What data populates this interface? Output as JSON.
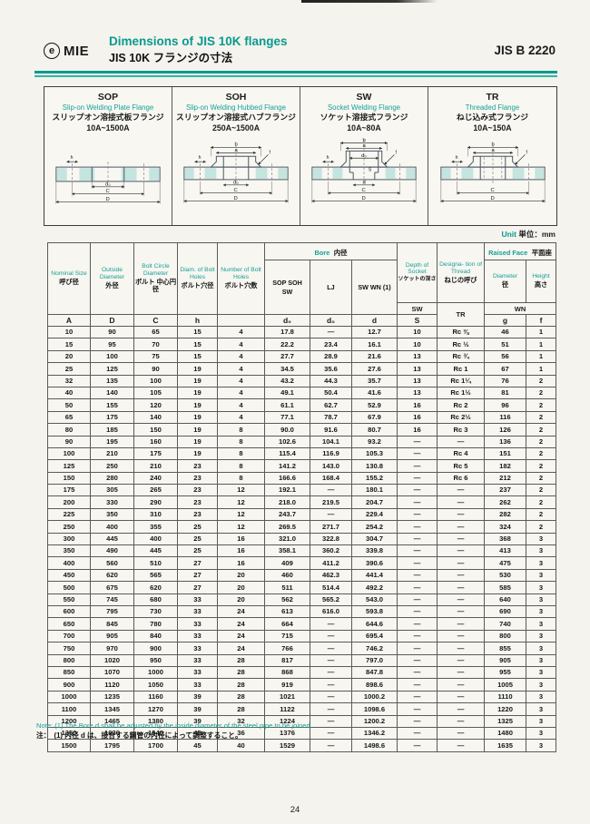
{
  "header": {
    "logo_icon": "e",
    "logo_text": "MIE",
    "title_en": "Dimensions of JIS 10K flanges",
    "title_ja": "JIS 10K フランジの寸法",
    "standard_code": "JIS B 2220"
  },
  "unit": {
    "en": "Unit",
    "ja": "単位：mm"
  },
  "flange_types": [
    {
      "code": "SOP",
      "name_en": "Slip-on Welding Plate Flange",
      "name_ja": "スリップオン溶接式板フランジ",
      "range": "10A~1500A"
    },
    {
      "code": "SOH",
      "name_en": "Slip-on Welding Hubbed Flange",
      "name_ja": "スリップオン溶接式ハブフランジ",
      "range": "250A~1500A"
    },
    {
      "code": "SW",
      "name_en": "Socket Welding Flange",
      "name_ja": "ソケット溶接式フランジ",
      "range": "10A~80A"
    },
    {
      "code": "TR",
      "name_en": "Threaded Flange",
      "name_ja": "ねじ込み式フランジ",
      "range": "10A~150A"
    }
  ],
  "diagram_labels": {
    "b": "b",
    "a": "a",
    "h": "h",
    "f": "f",
    "d0": "d₀",
    "d": "d",
    "S": "S",
    "C": "C",
    "D": "D"
  },
  "table": {
    "groups": {
      "bore": {
        "en": "Bore",
        "ja": "内径"
      },
      "raised_face": {
        "en": "Raised Face",
        "ja": "平面座"
      }
    },
    "columns": {
      "nominal": {
        "en": "Nominal Size",
        "ja": "呼び径",
        "letter": "A"
      },
      "outside": {
        "en": "Outside Diameter",
        "ja": "外径",
        "letter": "D"
      },
      "bolt_circle": {
        "en": "Bolt Circle Diameter",
        "ja": "ボルト 中心円径",
        "letter": "C"
      },
      "bolt_hole_dia": {
        "en": "Diam. of Bolt Holes",
        "ja": "ボルト穴径",
        "letter": "h"
      },
      "bolt_hole_num": {
        "en": "Number of Bolt Holes",
        "ja": "ボルト穴数",
        "letter": ""
      },
      "bore_sop": {
        "label": "SOP SOH SW",
        "letter": "d₀"
      },
      "bore_lj": {
        "label": "LJ",
        "letter": "d₀"
      },
      "bore_sw": {
        "label": "SW WN (1)",
        "letter": "d"
      },
      "socket_depth": {
        "en": "Depth of Socket",
        "ja": "ソケットの深さ",
        "sub": "SW",
        "letter": "S"
      },
      "thread": {
        "en": "Designa- tion of Thread",
        "ja": "ねじの呼び",
        "sub": "TR"
      },
      "rf_dia": {
        "en": "Diameter",
        "ja": "径",
        "letter": "g"
      },
      "rf_height": {
        "en": "Height",
        "ja": "高さ",
        "letter": "f"
      },
      "rf_sub": "WN"
    },
    "rows": [
      [
        "10",
        "90",
        "65",
        "15",
        "4",
        "17.8",
        "—",
        "12.7",
        "10",
        "Rc ⅜",
        "46",
        "1"
      ],
      [
        "15",
        "95",
        "70",
        "15",
        "4",
        "22.2",
        "23.4",
        "16.1",
        "10",
        "Rc ½",
        "51",
        "1"
      ],
      [
        "20",
        "100",
        "75",
        "15",
        "4",
        "27.7",
        "28.9",
        "21.6",
        "13",
        "Rc ¾",
        "56",
        "1"
      ],
      [
        "25",
        "125",
        "90",
        "19",
        "4",
        "34.5",
        "35.6",
        "27.6",
        "13",
        "Rc 1",
        "67",
        "1"
      ],
      [
        "32",
        "135",
        "100",
        "19",
        "4",
        "43.2",
        "44.3",
        "35.7",
        "13",
        "Rc 1¼",
        "76",
        "2"
      ],
      [
        "40",
        "140",
        "105",
        "19",
        "4",
        "49.1",
        "50.4",
        "41.6",
        "13",
        "Rc 1½",
        "81",
        "2"
      ],
      [
        "50",
        "155",
        "120",
        "19",
        "4",
        "61.1",
        "62.7",
        "52.9",
        "16",
        "Rc 2",
        "96",
        "2"
      ],
      [
        "65",
        "175",
        "140",
        "19",
        "4",
        "77.1",
        "78.7",
        "67.9",
        "16",
        "Rc 2½",
        "116",
        "2"
      ],
      [
        "80",
        "185",
        "150",
        "19",
        "8",
        "90.0",
        "91.6",
        "80.7",
        "16",
        "Rc 3",
        "126",
        "2"
      ],
      [
        "90",
        "195",
        "160",
        "19",
        "8",
        "102.6",
        "104.1",
        "93.2",
        "—",
        "—",
        "136",
        "2"
      ],
      [
        "100",
        "210",
        "175",
        "19",
        "8",
        "115.4",
        "116.9",
        "105.3",
        "—",
        "Rc 4",
        "151",
        "2"
      ],
      [
        "125",
        "250",
        "210",
        "23",
        "8",
        "141.2",
        "143.0",
        "130.8",
        "—",
        "Rc 5",
        "182",
        "2"
      ],
      [
        "150",
        "280",
        "240",
        "23",
        "8",
        "166.6",
        "168.4",
        "155.2",
        "—",
        "Rc 6",
        "212",
        "2"
      ],
      [
        "175",
        "305",
        "265",
        "23",
        "12",
        "192.1",
        "—",
        "180.1",
        "—",
        "—",
        "237",
        "2"
      ],
      [
        "200",
        "330",
        "290",
        "23",
        "12",
        "218.0",
        "219.5",
        "204.7",
        "—",
        "—",
        "262",
        "2"
      ],
      [
        "225",
        "350",
        "310",
        "23",
        "12",
        "243.7",
        "—",
        "229.4",
        "—",
        "—",
        "282",
        "2"
      ],
      [
        "250",
        "400",
        "355",
        "25",
        "12",
        "269.5",
        "271.7",
        "254.2",
        "—",
        "—",
        "324",
        "2"
      ],
      [
        "300",
        "445",
        "400",
        "25",
        "16",
        "321.0",
        "322.8",
        "304.7",
        "—",
        "—",
        "368",
        "3"
      ],
      [
        "350",
        "490",
        "445",
        "25",
        "16",
        "358.1",
        "360.2",
        "339.8",
        "—",
        "—",
        "413",
        "3"
      ],
      [
        "400",
        "560",
        "510",
        "27",
        "16",
        "409",
        "411.2",
        "390.6",
        "—",
        "—",
        "475",
        "3"
      ],
      [
        "450",
        "620",
        "565",
        "27",
        "20",
        "460",
        "462.3",
        "441.4",
        "—",
        "—",
        "530",
        "3"
      ],
      [
        "500",
        "675",
        "620",
        "27",
        "20",
        "511",
        "514.4",
        "492.2",
        "—",
        "—",
        "585",
        "3"
      ],
      [
        "550",
        "745",
        "680",
        "33",
        "20",
        "562",
        "565.2",
        "543.0",
        "—",
        "—",
        "640",
        "3"
      ],
      [
        "600",
        "795",
        "730",
        "33",
        "24",
        "613",
        "616.0",
        "593.8",
        "—",
        "—",
        "690",
        "3"
      ],
      [
        "650",
        "845",
        "780",
        "33",
        "24",
        "664",
        "—",
        "644.6",
        "—",
        "—",
        "740",
        "3"
      ],
      [
        "700",
        "905",
        "840",
        "33",
        "24",
        "715",
        "—",
        "695.4",
        "—",
        "—",
        "800",
        "3"
      ],
      [
        "750",
        "970",
        "900",
        "33",
        "24",
        "766",
        "—",
        "746.2",
        "—",
        "—",
        "855",
        "3"
      ],
      [
        "800",
        "1020",
        "950",
        "33",
        "28",
        "817",
        "—",
        "797.0",
        "—",
        "—",
        "905",
        "3"
      ],
      [
        "850",
        "1070",
        "1000",
        "33",
        "28",
        "868",
        "—",
        "847.8",
        "—",
        "—",
        "955",
        "3"
      ],
      [
        "900",
        "1120",
        "1050",
        "33",
        "28",
        "919",
        "—",
        "898.6",
        "—",
        "—",
        "1005",
        "3"
      ],
      [
        "1000",
        "1235",
        "1160",
        "39",
        "28",
        "1021",
        "—",
        "1000.2",
        "—",
        "—",
        "1110",
        "3"
      ],
      [
        "1100",
        "1345",
        "1270",
        "39",
        "28",
        "1122",
        "—",
        "1098.6",
        "—",
        "—",
        "1220",
        "3"
      ],
      [
        "1200",
        "1465",
        "1380",
        "39",
        "32",
        "1224",
        "—",
        "1200.2",
        "—",
        "—",
        "1325",
        "3"
      ],
      [
        "1350",
        "1630",
        "1540",
        "45",
        "36",
        "1376",
        "—",
        "1346.2",
        "—",
        "—",
        "1480",
        "3"
      ],
      [
        "1500",
        "1795",
        "1700",
        "45",
        "40",
        "1529",
        "—",
        "1498.6",
        "—",
        "—",
        "1635",
        "3"
      ]
    ],
    "group_starts": [
      3,
      6,
      9,
      12,
      15,
      18,
      21,
      24,
      27,
      30,
      33
    ]
  },
  "notes": {
    "en": "Note: (1) The Bore d shall be adjusted by the inside diameter of the steel pipe to be joined.",
    "ja": "注：　(1) 内径 d は、接合する鋼管の内径によって調整すること。"
  },
  "page_number": "24"
}
